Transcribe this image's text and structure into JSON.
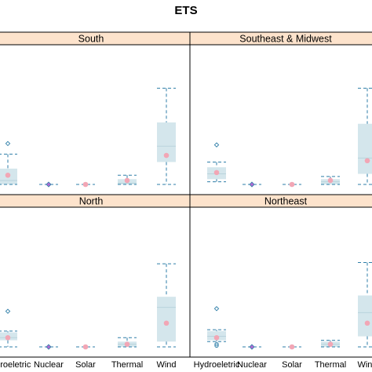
{
  "chart_data": {
    "type": "box",
    "title": "ETS",
    "categories": [
      "Hydroeletric",
      "Nuclear",
      "Solar",
      "Thermal",
      "Wind"
    ],
    "ylim": [
      0,
      1
    ],
    "panels": [
      {
        "name": "South",
        "boxes": [
          {
            "category": "Hydroeletric",
            "min": 0.0,
            "q1": 0.0,
            "median": 0.03,
            "q3": 0.12,
            "max": 0.23,
            "mean": 0.07,
            "outliers": [
              0.31
            ]
          },
          {
            "category": "Nuclear",
            "min": 0.0,
            "q1": 0.0,
            "median": 0.0,
            "q3": 0.0,
            "max": 0.0,
            "mean": 0.0,
            "outliers": []
          },
          {
            "category": "Solar",
            "min": 0.0,
            "q1": 0.0,
            "median": 0.0,
            "q3": 0.0,
            "max": 0.0,
            "mean": 0.0,
            "outliers": []
          },
          {
            "category": "Thermal",
            "min": 0.0,
            "q1": 0.0,
            "median": 0.01,
            "q3": 0.04,
            "max": 0.07,
            "mean": 0.03,
            "outliers": []
          },
          {
            "category": "Wind",
            "min": 0.0,
            "q1": 0.17,
            "median": 0.29,
            "q3": 0.47,
            "max": 0.73,
            "mean": 0.22,
            "outliers": []
          }
        ]
      },
      {
        "name": "Southeast & Midwest",
        "boxes": [
          {
            "category": "Hydroeletric",
            "min": 0.02,
            "q1": 0.04,
            "median": 0.08,
            "q3": 0.13,
            "max": 0.17,
            "mean": 0.09,
            "outliers": [
              0.3
            ]
          },
          {
            "category": "Nuclear",
            "min": 0.0,
            "q1": 0.0,
            "median": 0.0,
            "q3": 0.0,
            "max": 0.0,
            "mean": 0.0,
            "outliers": []
          },
          {
            "category": "Solar",
            "min": 0.0,
            "q1": 0.0,
            "median": 0.0,
            "q3": 0.0,
            "max": 0.0,
            "mean": 0.0,
            "outliers": []
          },
          {
            "category": "Thermal",
            "min": 0.0,
            "q1": 0.0,
            "median": 0.02,
            "q3": 0.04,
            "max": 0.06,
            "mean": 0.03,
            "outliers": []
          },
          {
            "category": "Wind",
            "min": 0.0,
            "q1": 0.08,
            "median": 0.2,
            "q3": 0.46,
            "max": 0.73,
            "mean": 0.18,
            "outliers": []
          }
        ]
      },
      {
        "name": "North",
        "boxes": [
          {
            "category": "Hydroeletric",
            "min": 0.0,
            "q1": 0.05,
            "median": 0.07,
            "q3": 0.11,
            "max": 0.12,
            "mean": 0.07,
            "outliers": [
              0.27
            ]
          },
          {
            "category": "Nuclear",
            "min": 0.0,
            "q1": 0.0,
            "median": 0.0,
            "q3": 0.0,
            "max": 0.0,
            "mean": 0.0,
            "outliers": []
          },
          {
            "category": "Solar",
            "min": 0.0,
            "q1": 0.0,
            "median": 0.0,
            "q3": 0.0,
            "max": 0.0,
            "mean": 0.0,
            "outliers": []
          },
          {
            "category": "Thermal",
            "min": 0.0,
            "q1": 0.0,
            "median": 0.02,
            "q3": 0.04,
            "max": 0.07,
            "mean": 0.02,
            "outliers": []
          },
          {
            "category": "Wind",
            "min": 0.0,
            "q1": 0.04,
            "median": 0.3,
            "q3": 0.38,
            "max": 0.63,
            "mean": 0.18,
            "outliers": []
          }
        ]
      },
      {
        "name": "Northeast",
        "boxes": [
          {
            "category": "Hydroeletric",
            "min": 0.04,
            "q1": 0.05,
            "median": 0.08,
            "q3": 0.12,
            "max": 0.13,
            "mean": 0.07,
            "outliers": [
              0.29,
              0.01,
              0.02
            ]
          },
          {
            "category": "Nuclear",
            "min": 0.0,
            "q1": 0.0,
            "median": 0.0,
            "q3": 0.0,
            "max": 0.0,
            "mean": 0.0,
            "outliers": []
          },
          {
            "category": "Solar",
            "min": 0.0,
            "q1": 0.0,
            "median": 0.0,
            "q3": 0.0,
            "max": 0.0,
            "mean": 0.0,
            "outliers": []
          },
          {
            "category": "Thermal",
            "min": 0.0,
            "q1": 0.0,
            "median": 0.02,
            "q3": 0.04,
            "max": 0.05,
            "mean": 0.02,
            "outliers": []
          },
          {
            "category": "Wind",
            "min": 0.0,
            "q1": 0.08,
            "median": 0.26,
            "q3": 0.39,
            "max": 0.64,
            "mean": 0.18,
            "outliers": []
          }
        ]
      }
    ],
    "colors": {
      "box_fill": "#d4e6ec",
      "whisker": "#2e7ea8",
      "mean_marker": "#f2a6b5",
      "outlier": "#2e7ea8",
      "strip_fill": "#fde3cc",
      "grid": false
    }
  }
}
